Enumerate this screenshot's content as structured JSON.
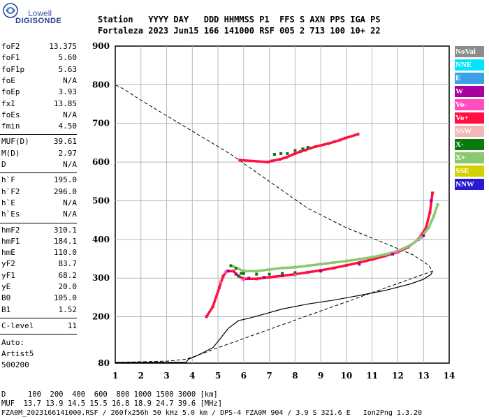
{
  "logo": {
    "line1": "Lowell",
    "line2": "DIGISONDE"
  },
  "header": {
    "line1": "Station   YYYY DAY   DDD HHMMSS P1  FFS S AXN PPS IGA PS",
    "line2": "Fortaleza 2023 Jun15 166 141000 RSF 005 2 713 100 10+ 22"
  },
  "params_group1": [
    {
      "key": "foF2",
      "val": "13.375"
    },
    {
      "key": "foF1",
      "val": "5.60"
    },
    {
      "key": "foF1p",
      "val": "5.63"
    },
    {
      "key": "foE",
      "val": "N/A"
    },
    {
      "key": "foEp",
      "val": "3.93"
    },
    {
      "key": "fxI",
      "val": "13.85"
    },
    {
      "key": "foEs",
      "val": "N/A"
    },
    {
      "key": "fmin",
      "val": "4.50"
    }
  ],
  "params_group2": [
    {
      "key": "MUF(D)",
      "val": "39.61"
    },
    {
      "key": "M(D)",
      "val": "2.97"
    },
    {
      "key": "D",
      "val": "N/A"
    }
  ],
  "params_group3": [
    {
      "key": "h`F",
      "val": "195.0"
    },
    {
      "key": "h`F2",
      "val": "296.0"
    },
    {
      "key": "h`E",
      "val": "N/A"
    },
    {
      "key": "h`Es",
      "val": "N/A"
    }
  ],
  "params_group4": [
    {
      "key": "hmF2",
      "val": "310.1"
    },
    {
      "key": "hmF1",
      "val": "184.1"
    },
    {
      "key": "hmE",
      "val": "110.0"
    },
    {
      "key": "yF2",
      "val": "83.7"
    },
    {
      "key": "yF1",
      "val": "68.2"
    },
    {
      "key": "yE",
      "val": "20.0"
    },
    {
      "key": "B0",
      "val": "105.0"
    },
    {
      "key": "B1",
      "val": "1.52"
    }
  ],
  "clevel": {
    "key": "C-level",
    "val": "11"
  },
  "auto": {
    "line1": "Auto:",
    "line2": "Artist5",
    "line3": "500200"
  },
  "bottom": {
    "line1": "D     100  200  400  600  800 1000 1500 3000 [km]",
    "line2": "MUF  13.7 13.9 14.5 15.5 16.8 18.9 24.7 39.6 [MHz]",
    "line3": "FZA0M_2023166141000.RSF / 260fx256h 50 kHz 5.0 km / DPS-4 FZA0M 904 / 3.9 S 321.6 E   Ion2Png 1.3.20"
  },
  "legend": [
    {
      "label": "NoVal",
      "color": "#8c8c8c"
    },
    {
      "label": "NNE",
      "color": "#00e5ff"
    },
    {
      "label": "E",
      "color": "#3aa0e8"
    },
    {
      "label": "W",
      "color": "#a6009e"
    },
    {
      "label": "Vo-",
      "color": "#ff4fbf"
    },
    {
      "label": "Vo+",
      "color": "#ff1040"
    },
    {
      "label": "SSW",
      "color": "#f4b6b6"
    },
    {
      "label": "X-",
      "color": "#0a7a0a"
    },
    {
      "label": "X+",
      "color": "#8cc870"
    },
    {
      "label": "SSE",
      "color": "#d2d200"
    },
    {
      "label": "NNW",
      "color": "#2a1ad8"
    }
  ],
  "chart_data": {
    "type": "scatter",
    "xlim": [
      1,
      14
    ],
    "ylim": [
      80,
      900
    ],
    "x_ticks": [
      1,
      2,
      3,
      4,
      5,
      6,
      7,
      8,
      9,
      10,
      11,
      12,
      13,
      14
    ],
    "y_ticks": [
      80,
      200,
      300,
      400,
      500,
      600,
      700,
      800,
      900
    ],
    "grid": true,
    "legend_position": "right",
    "series": [
      {
        "name": "Vo+",
        "color": "#ff1040",
        "points": [
          [
            4.55,
            200
          ],
          [
            4.8,
            226
          ],
          [
            5.05,
            275
          ],
          [
            5.2,
            305
          ],
          [
            5.35,
            318
          ],
          [
            5.6,
            318
          ],
          [
            5.8,
            305
          ],
          [
            6.0,
            298
          ],
          [
            6.5,
            298
          ],
          [
            7.0,
            302
          ],
          [
            7.5,
            306
          ],
          [
            8.0,
            310
          ],
          [
            8.5,
            315
          ],
          [
            9.0,
            320
          ],
          [
            9.5,
            326
          ],
          [
            10.0,
            333
          ],
          [
            10.5,
            340
          ],
          [
            11.0,
            348
          ],
          [
            11.5,
            357
          ],
          [
            12.0,
            367
          ],
          [
            12.4,
            380
          ],
          [
            12.8,
            400
          ],
          [
            13.1,
            430
          ],
          [
            13.25,
            470
          ],
          [
            13.35,
            520
          ]
        ]
      },
      {
        "name": "X+",
        "color": "#8cc870",
        "points": [
          [
            5.6,
            330
          ],
          [
            6.0,
            318
          ],
          [
            6.5,
            318
          ],
          [
            7.0,
            322
          ],
          [
            7.5,
            326
          ],
          [
            8.0,
            328
          ],
          [
            8.5,
            332
          ],
          [
            9.0,
            336
          ],
          [
            9.5,
            340
          ],
          [
            10.0,
            344
          ],
          [
            10.5,
            349
          ],
          [
            11.0,
            354
          ],
          [
            11.5,
            361
          ],
          [
            12.0,
            370
          ],
          [
            12.5,
            385
          ],
          [
            12.9,
            405
          ],
          [
            13.2,
            430
          ],
          [
            13.4,
            460
          ],
          [
            13.55,
            490
          ]
        ]
      },
      {
        "name": "X-",
        "color": "#0a7a0a",
        "points": [
          [
            5.5,
            332
          ],
          [
            5.9,
            312
          ],
          [
            6.5,
            310
          ],
          [
            7.0,
            310
          ],
          [
            7.5,
            312
          ],
          [
            8.0,
            314
          ],
          [
            5.7,
            325
          ],
          [
            5.8,
            305
          ],
          [
            6.0,
            312
          ]
        ]
      },
      {
        "name": "W",
        "color": "#a6009e",
        "points": [
          [
            5.4,
            318
          ],
          [
            5.7,
            310
          ],
          [
            6.2,
            300
          ],
          [
            6.8,
            302
          ],
          [
            7.5,
            306
          ],
          [
            9.0,
            318
          ],
          [
            10.5,
            336
          ],
          [
            11.8,
            362
          ],
          [
            13.0,
            410
          ],
          [
            13.3,
            500
          ]
        ]
      },
      {
        "name": "Vo-",
        "color": "#ff4fbf",
        "points": [
          [
            5.1,
            290
          ],
          [
            5.3,
            315
          ],
          [
            6.0,
            296
          ],
          [
            8.0,
            308
          ],
          [
            12.0,
            368
          ]
        ]
      },
      {
        "name": "upper",
        "color": "#ff1040",
        "points": [
          [
            5.85,
            605
          ],
          [
            6.95,
            600
          ],
          [
            7.1,
            603
          ],
          [
            7.4,
            607
          ],
          [
            7.65,
            612
          ],
          [
            8.0,
            622
          ],
          [
            8.2,
            627
          ],
          [
            8.4,
            631
          ],
          [
            8.6,
            636
          ],
          [
            8.8,
            640
          ],
          [
            9.3,
            648
          ],
          [
            9.55,
            653
          ],
          [
            9.75,
            657
          ],
          [
            9.95,
            662
          ],
          [
            10.45,
            672
          ]
        ]
      },
      {
        "name": "upper-x",
        "color": "#0a7a0a",
        "points": [
          [
            7.2,
            620
          ],
          [
            7.45,
            622
          ],
          [
            7.7,
            622
          ],
          [
            8.0,
            630
          ],
          [
            8.3,
            634
          ],
          [
            8.5,
            638
          ]
        ]
      }
    ],
    "profile_solid": [
      [
        1.0,
        82
      ],
      [
        3.75,
        82
      ],
      [
        3.85,
        90
      ],
      [
        4.2,
        100
      ],
      [
        4.8,
        120
      ],
      [
        5.05,
        140
      ],
      [
        5.4,
        170
      ],
      [
        5.8,
        190
      ],
      [
        6.2,
        196
      ],
      [
        6.8,
        207
      ],
      [
        7.5,
        220
      ],
      [
        8.5,
        233
      ],
      [
        9.5,
        243
      ],
      [
        10.5,
        255
      ],
      [
        11.5,
        268
      ],
      [
        12.5,
        285
      ],
      [
        13.0,
        297
      ],
      [
        13.3,
        310
      ],
      [
        13.35,
        318
      ]
    ],
    "profile_dashed": [
      [
        1.0,
        82
      ],
      [
        3.0,
        85
      ],
      [
        3.75,
        90
      ],
      [
        4.2,
        100
      ],
      [
        5.0,
        120
      ],
      [
        13.35,
        318
      ],
      [
        13.2,
        333
      ],
      [
        12.6,
        360
      ],
      [
        11.5,
        390
      ],
      [
        10.0,
        430
      ],
      [
        8.5,
        480
      ],
      [
        7.0,
        550
      ],
      [
        5.5,
        620
      ],
      [
        4.0,
        680
      ],
      [
        3.0,
        720
      ],
      [
        2.0,
        760
      ],
      [
        1.3,
        790
      ],
      [
        1.0,
        800
      ]
    ]
  }
}
